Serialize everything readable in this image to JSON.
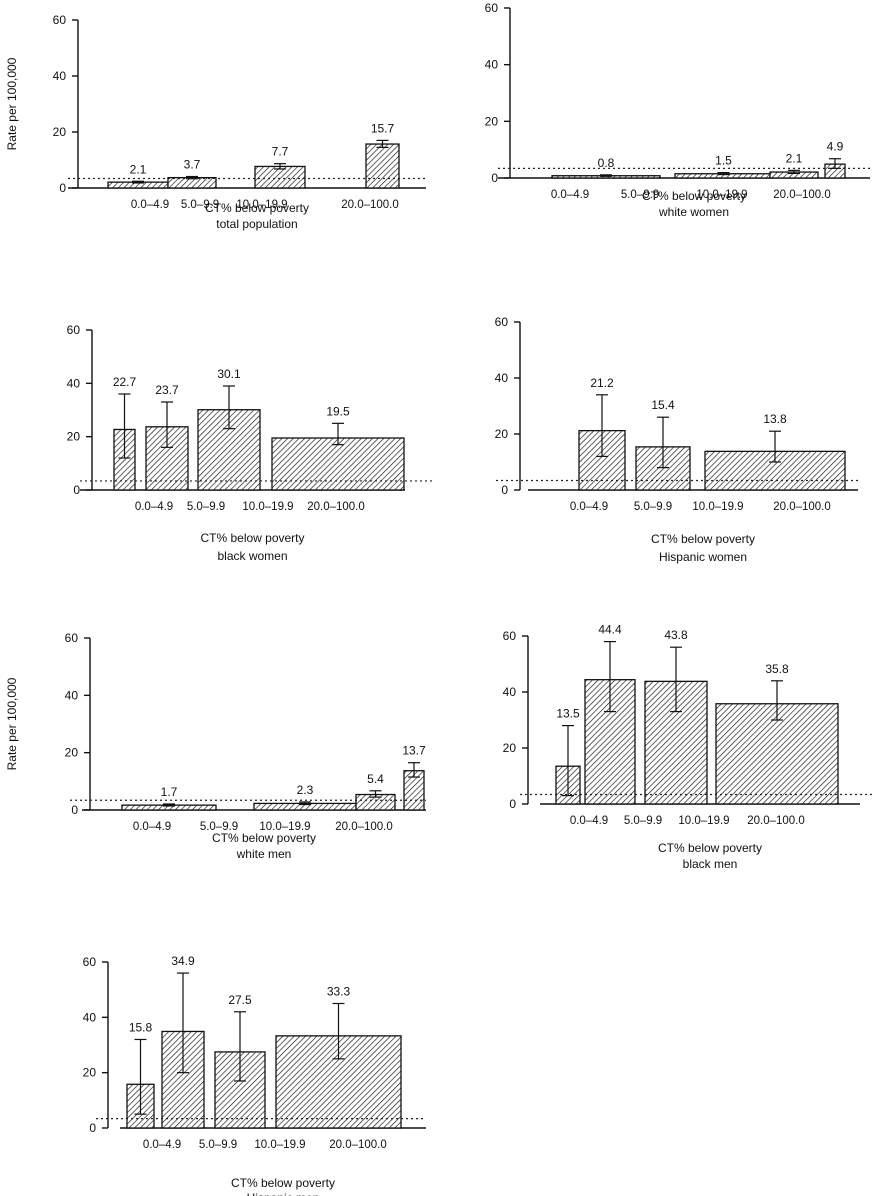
{
  "chart_data": [
    {
      "type": "bar",
      "ylabel": "Rate per 100,000",
      "xlabel": "CT% below poverty",
      "subtitle": "total population",
      "categories": [
        "0.0–4.9",
        "5.0–9.9",
        "10.0–19.9",
        "20.0–100.0"
      ],
      "ylim": [
        0,
        60
      ],
      "yticks": [
        0,
        20,
        40,
        60
      ],
      "reference_line": 3.4,
      "bars": [
        {
          "category": "0.0–4.9",
          "value": 2.1,
          "err_low": 1.8,
          "err_high": 2.4
        },
        {
          "category": "5.0–9.9",
          "value": 3.7,
          "err_low": 3.3,
          "err_high": 4.1
        },
        {
          "category": "10.0–19.9",
          "value": 7.7,
          "err_low": 6.8,
          "err_high": 8.7
        },
        {
          "category": "20.0–100.0",
          "value": 15.7,
          "err_low": 14.5,
          "err_high": 17.0
        }
      ]
    },
    {
      "type": "bar",
      "ylabel": "",
      "xlabel": "CT% below poverty",
      "subtitle": "white women",
      "categories": [
        "0.0–4.9",
        "5.0–9.9",
        "10.0–19.9",
        "20.0–100.0"
      ],
      "ylim": [
        0,
        60
      ],
      "yticks": [
        0,
        20,
        40,
        60
      ],
      "reference_line": 3.4,
      "bars": [
        {
          "category": "0.0–4.9",
          "value": 0.8,
          "err_low": 0.6,
          "err_high": 1.1
        },
        {
          "category": "5.0–9.9",
          "value": 1.5,
          "err_low": 1.2,
          "err_high": 1.9
        },
        {
          "category": "10.0–19.9",
          "value": 2.1,
          "err_low": 1.6,
          "err_high": 2.7
        },
        {
          "category": "20.0–100.0",
          "value": 4.9,
          "err_low": 3.4,
          "err_high": 6.8
        }
      ]
    },
    {
      "type": "bar",
      "ylabel": "",
      "xlabel": "CT% below poverty",
      "subtitle": "black women",
      "categories": [
        "0.0–4.9",
        "5.0–9.9",
        "10.0–19.9",
        "20.0–100.0"
      ],
      "ylim": [
        0,
        60
      ],
      "yticks": [
        0,
        20,
        40,
        60
      ],
      "reference_line": 3.4,
      "bars": [
        {
          "category": "0.0–4.9",
          "value": 22.7,
          "err_low": 12.0,
          "err_high": 36.0
        },
        {
          "category": "5.0–9.9",
          "value": 23.7,
          "err_low": 16.0,
          "err_high": 33.0
        },
        {
          "category": "10.0–19.9",
          "value": 30.1,
          "err_low": 23.0,
          "err_high": 39.0
        },
        {
          "category": "20.0–100.0",
          "value": 19.5,
          "err_low": 17.0,
          "err_high": 25.0
        }
      ]
    },
    {
      "type": "bar",
      "ylabel": "",
      "xlabel": "CT% below poverty",
      "subtitle": "Hispanic women",
      "categories": [
        "0.0–4.9",
        "5.0–9.9",
        "10.0–19.9",
        "20.0–100.0"
      ],
      "ylim": [
        0,
        60
      ],
      "yticks": [
        0,
        20,
        40,
        60
      ],
      "reference_line": 3.4,
      "bars": [
        {
          "category": "0.0–4.9",
          "value": null
        },
        {
          "category": "5.0–9.9",
          "value": 21.2,
          "err_low": 12.0,
          "err_high": 34.0
        },
        {
          "category": "10.0–19.9",
          "value": 15.4,
          "err_low": 8.0,
          "err_high": 26.0
        },
        {
          "category": "20.0–100.0",
          "value": 13.8,
          "err_low": 10.0,
          "err_high": 21.0
        }
      ]
    },
    {
      "type": "bar",
      "ylabel": "Rate per 100,000",
      "xlabel": "CT% below poverty",
      "subtitle": "white men",
      "categories": [
        "0.0–4.9",
        "5.0–9.9",
        "10.0–19.9",
        "20.0–100.0"
      ],
      "ylim": [
        0,
        60
      ],
      "yticks": [
        0,
        20,
        40,
        60
      ],
      "reference_line": 3.4,
      "bars": [
        {
          "category": "0.0–4.9",
          "value": 1.7,
          "err_low": 1.4,
          "err_high": 2.1
        },
        {
          "category": "5.0–9.9",
          "value": 2.3,
          "err_low": 1.9,
          "err_high": 2.8
        },
        {
          "category": "10.0–19.9",
          "value": 5.4,
          "err_low": 4.5,
          "err_high": 6.7
        },
        {
          "category": "20.0–100.0",
          "value": 13.7,
          "err_low": 11.5,
          "err_high": 16.5
        }
      ]
    },
    {
      "type": "bar",
      "ylabel": "",
      "xlabel": "CT% below poverty",
      "subtitle": "black men",
      "categories": [
        "0.0–4.9",
        "5.0–9.9",
        "10.0–19.9",
        "20.0–100.0"
      ],
      "ylim": [
        0,
        60
      ],
      "yticks": [
        0,
        20,
        40,
        60
      ],
      "reference_line": 3.4,
      "bars": [
        {
          "category": "0.0–4.9",
          "value": 13.5,
          "err_low": 3.0,
          "err_high": 28.0
        },
        {
          "category": "5.0–9.9",
          "value": 44.4,
          "err_low": 33.0,
          "err_high": 58.0
        },
        {
          "category": "10.0–19.9",
          "value": 43.8,
          "err_low": 33.0,
          "err_high": 56.0
        },
        {
          "category": "20.0–100.0",
          "value": 35.8,
          "err_low": 30.0,
          "err_high": 44.0
        }
      ]
    },
    {
      "type": "bar",
      "ylabel": "",
      "xlabel": "CT% below poverty",
      "subtitle": "Hispanic men",
      "categories": [
        "0.0–4.9",
        "5.0–9.9",
        "10.0–19.9",
        "20.0–100.0"
      ],
      "ylim": [
        0,
        60
      ],
      "yticks": [
        0,
        20,
        40,
        60
      ],
      "reference_line": 3.4,
      "bars": [
        {
          "category": "0.0–4.9",
          "value": 15.8,
          "err_low": 5.0,
          "err_high": 32.0
        },
        {
          "category": "5.0–9.9",
          "value": 34.9,
          "err_low": 20.0,
          "err_high": 56.0
        },
        {
          "category": "10.0–19.9",
          "value": 27.5,
          "err_low": 17.0,
          "err_high": 42.0
        },
        {
          "category": "20.0–100.0",
          "value": 33.3,
          "err_low": 25.0,
          "err_high": 45.0
        }
      ]
    }
  ]
}
